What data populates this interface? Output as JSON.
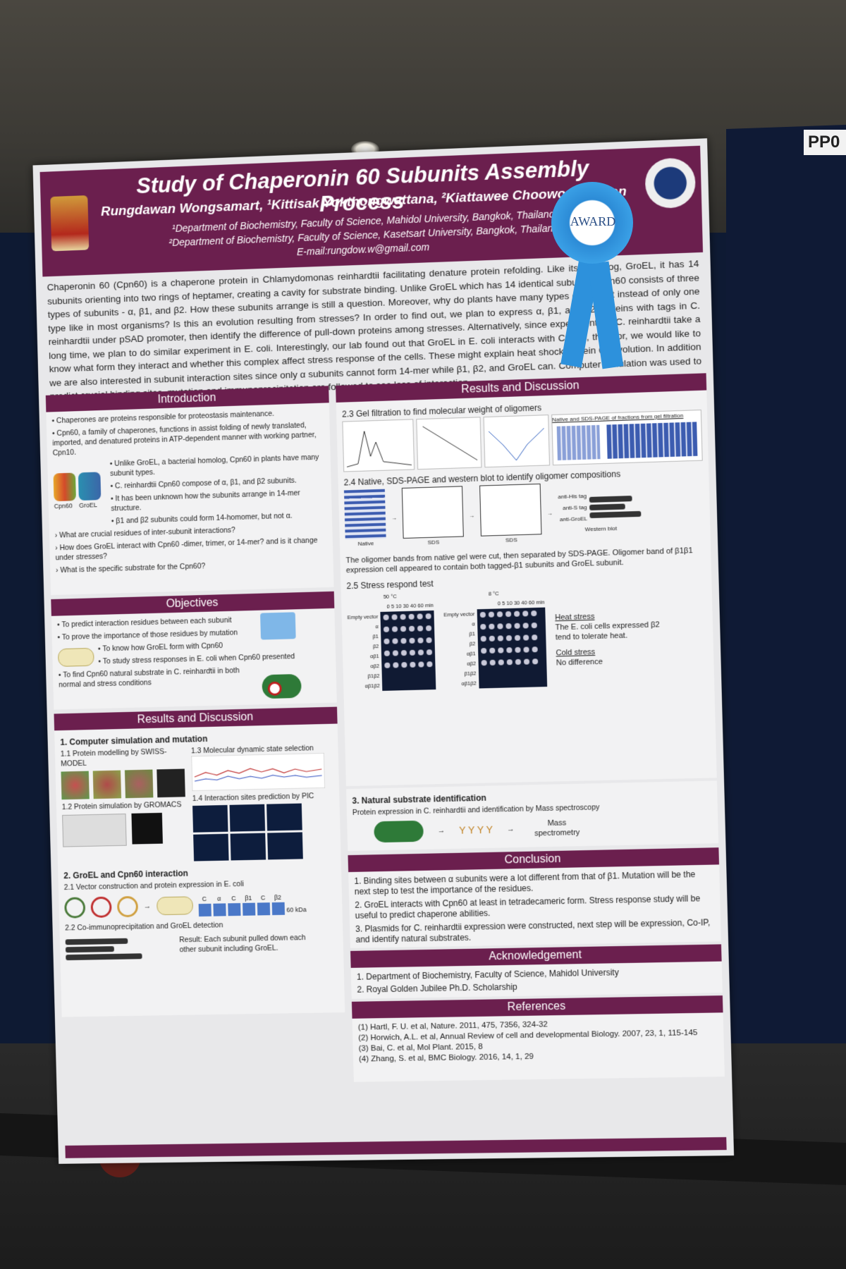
{
  "tag": "PP0",
  "poster": {
    "title": "Study of Chaperonin 60 Subunits Assembly Process",
    "authors": "Rungdawan Wongsamart, ¹Kittisak Yokthongwattana, ²Kiattawee Choowongkomon",
    "aff1": "¹Department of Biochemistry, Faculty of Science, Mahidol University, Bangkok, Thailand",
    "aff2": "²Department of Biochemistry, Faculty of Science, Kasetsart University, Bangkok, Thailand",
    "email": "E-mail:rungdow.w@gmail.com",
    "award": "AWARD",
    "abstract": "Chaperonin 60 (Cpn60) is a chaperone protein in Chlamydomonas reinhardtii facilitating denature protein refolding. Like its homolog, GroEL, it has 14 subunits orienting into two rings of heptamer, creating a cavity for substrate binding. Unlike GroEL which has 14 identical subunits, Cpn60 consists of three types of subunits - α, β1, and β2. How these subunits arrange is still a question. Moreover, why do plants have many types of subunit instead of only one type like in most organisms? Is this an evolution resulting from stresses? In order to find out, we plan to express α, β1, and β2 proteins with tags in C. reinhardtii under pSAD promoter, then identify the difference of pull-down proteins among stresses. Alternatively, since experiments in C. reinhardtii take a long time, we plan to do similar experiment in E. coli. Interestingly, our lab found out that GroEL in E. coli interacts with Cpn60, therefor, we would like to know what form they interact and whether this complex affect stress response of the cells. These might explain heat shock protein 60 evolution. In addition we are also interested in subunit interaction sites since only α subunits cannot form 14-mer while β1, β2, and GroEL can. Computer simulation was used to predict crucial binding sites, mutation and immunoprecipitation are followed to see loss of interaction.",
    "intro": {
      "heading": "Introduction",
      "items": [
        "• Chaperones are proteins responsible for proteostasis maintenance.",
        "• Cpn60, a family of chaperones, functions in assist folding of newly translated, imported, and denatured proteins in ATP-dependent manner with working partner, Cpn10.",
        "• Unlike GroEL, a bacterial homolog, Cpn60 in plants have many subunit types.",
        "• C. reinhardtii Cpn60 compose of α, β1, and β2 subunits.",
        "• It has been unknown how the subunits arrange in 14-mer structure.",
        "• β1 and β2 subunits could form 14-homomer, but not α."
      ],
      "fig_labels": [
        "Cpn60",
        "GroEL"
      ],
      "questions": [
        "› What are crucial residues of inter-subunit interactions?",
        "› How does GroEL interact with Cpn60 -dimer, trimer, or 14-mer? and is it change under stresses?",
        "› What is the specific substrate for the Cpn60?"
      ]
    },
    "objectives": {
      "heading": "Objectives",
      "items": [
        "• To predict interaction residues between each subunit",
        "• To prove the importance of those residues by mutation",
        "• To know how GroEL form with Cpn60",
        "• To study stress responses in E. coli when Cpn60 presented",
        "• To find Cpn60 natural substrate in C. reinhardtii in both normal and stress conditions"
      ]
    },
    "results_left": {
      "heading": "Results and Discussion",
      "s1": "1. Computer simulation and mutation",
      "s11": "1.1 Protein modelling by SWISS-MODEL",
      "s12": "1.2 Protein simulation by GROMACS",
      "s13": "1.3 Molecular dynamic state selection",
      "s14": "1.4 Interaction sites prediction by PIC",
      "s2": "2. GroEL and Cpn60 interaction",
      "s21": "2.1 Vector construction and protein expression in E. coli",
      "s22": "2.2 Co-immunoprecipitation and GroEL detection",
      "gel_labels": [
        "C",
        "α",
        "C",
        "β1",
        "C",
        "β2"
      ],
      "kda": "60 kDa",
      "result": "Result: Each subunit pulled down each other subunit including GroEL."
    },
    "results_right": {
      "heading": "Results and Discussion",
      "s23": "2.3 Gel filtration to find molecular weight of oligomers",
      "gel_title": "Native and SDS-PAGE of fractions from gel filtration",
      "s24": "2.4 Native, SDS-PAGE and western blot to identify oligomer compositions",
      "blot_labels": [
        "Native",
        "SDS",
        "SDS",
        "Western blot"
      ],
      "wb_rows": [
        "anti-His tag",
        "anti-S tag",
        "anti-GroEL"
      ],
      "oligomer_note": "The oligomer bands from native gel were cut, then separated by SDS-PAGE. Oligomer band of β1β1 expression cell appeared to contain both tagged-β1 subunits and GroEL subunit.",
      "s25": "2.5 Stress respond test",
      "temps": [
        "50 °C",
        "8 °C"
      ],
      "time_axis": "0  5  10  30  40  60  min",
      "strains": [
        "Empty vector",
        "α",
        "β1",
        "β2",
        "αβ1",
        "αβ2",
        "β1β2",
        "αβ1β2"
      ],
      "heat_title": "Heat stress",
      "heat_text": "The E. coli cells expressed β2 tend to tolerate heat.",
      "cold_title": "Cold stress",
      "cold_text": "No difference",
      "s3": "3. Natural substrate identification",
      "s3_text": "Protein expression in C. reinhardtii and identification by Mass spectroscopy",
      "mass": "Mass spectrometry"
    },
    "conclusion": {
      "heading": "Conclusion",
      "items": [
        "1. Binding sites between α subunits were a lot different from that of β1. Mutation will be the next step to test the importance of the residues.",
        "2. GroEL interacts with Cpn60 at least in tetradecameric form. Stress response study will be useful to predict chaperone abilities.",
        "3. Plasmids for C. reinhardtii expression were constructed, next step will be expression, Co-IP, and identify natural substrates."
      ]
    },
    "acknowledgement": {
      "heading": "Acknowledgement",
      "items": [
        "1. Department of Biochemistry, Faculty of Science, Mahidol University",
        "2. Royal Golden Jubilee Ph.D. Scholarship"
      ]
    },
    "references": {
      "heading": "References",
      "items": [
        "(1) Hartl, F. U. et al, Nature. 2011, 475, 7356, 324-32",
        "(2) Horwich, A.L. et al, Annual Review of cell and developmental Biology. 2007, 23, 1, 115-145",
        "(3) Bai, C. et al, Mol Plant. 2015, 8",
        "(4) Zhang, S. et al, BMC Biology. 2016, 14, 1, 29"
      ]
    }
  }
}
